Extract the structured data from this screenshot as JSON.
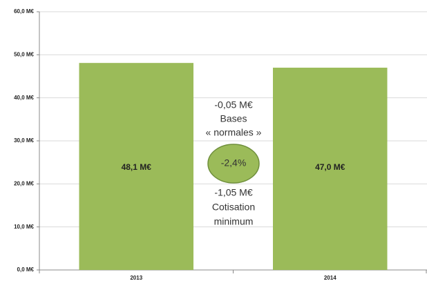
{
  "chart_data": {
    "type": "bar",
    "categories": [
      "2013",
      "2014"
    ],
    "values": [
      48.1,
      47.0
    ],
    "value_labels": [
      "48,1 M€",
      "47,0 M€"
    ],
    "color": "#9bbb59",
    "ylim": [
      0,
      60
    ],
    "yticks": [
      {
        "value": 0,
        "label": "0,0 M€"
      },
      {
        "value": 10,
        "label": "10,0 M€"
      },
      {
        "value": 20,
        "label": "20,0 M€"
      },
      {
        "value": 30,
        "label": "30,0 M€"
      },
      {
        "value": 40,
        "label": "40,0 M€"
      },
      {
        "value": 50,
        "label": "50,0 M€"
      },
      {
        "value": 60,
        "label": "60,0 M€"
      }
    ],
    "grid": true,
    "annotations": [
      "-0,05 M€",
      "Bases",
      "« normales »",
      "-2,4%",
      "-1,05 M€",
      "Cotisation",
      "minimum"
    ]
  }
}
